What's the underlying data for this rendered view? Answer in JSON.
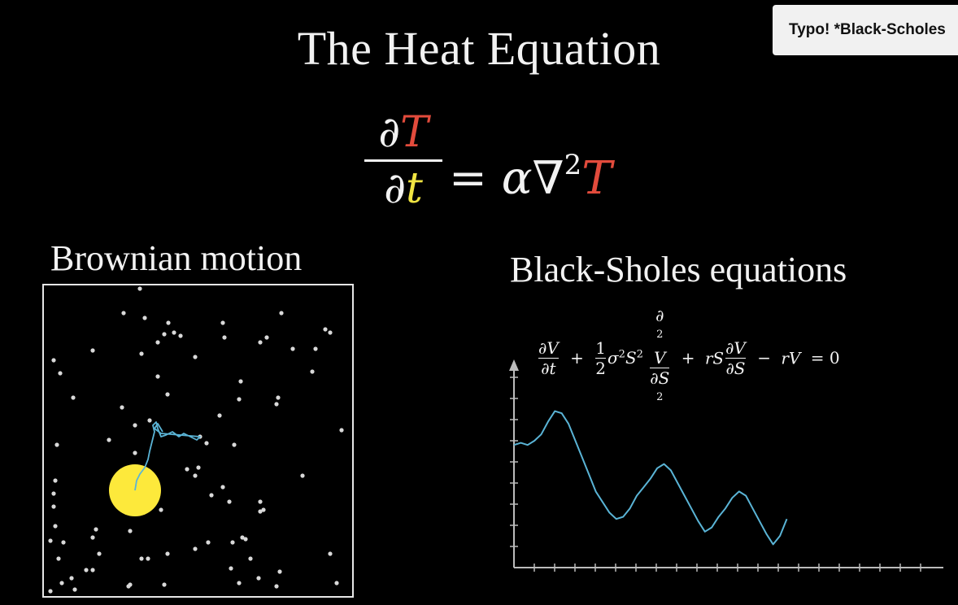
{
  "title": "The Heat Equation",
  "heat_equation": {
    "num_partial": "∂",
    "num_var": "T",
    "den_partial": "∂",
    "den_var": "t",
    "rhs_equals": "=",
    "rhs_alpha": "α∇",
    "rhs_exp": "2",
    "rhs_var": "T"
  },
  "brownian": {
    "label": "Brownian motion",
    "particle_color": "#fde93b",
    "path_color": "#5ab4d6"
  },
  "black_scholes": {
    "label": "Black-Sholes equations",
    "eq": {
      "f1_num": "∂V",
      "f1_den": "∂t",
      "plus1": "+",
      "f2_num": "1",
      "f2_den": "2",
      "sigma_s": "σ",
      "sup2a": "2",
      "s_term": "S",
      "sup2b": "2",
      "f3_num": "∂",
      "f3_sup": "2",
      "f3_numv": "V",
      "f3_den": "∂S",
      "f3_densup": "2",
      "plus2": "+",
      "rS": "rS",
      "f4_num": "∂V",
      "f4_den": "∂S",
      "minus": "−",
      "rV": "rV",
      "eq_zero": "= 0"
    }
  },
  "chart_data": {
    "type": "line",
    "x": [
      0,
      1,
      2,
      3,
      4,
      5,
      6,
      7,
      8,
      9,
      10,
      11,
      12,
      13,
      14,
      15,
      16,
      17,
      18,
      19,
      20,
      21,
      22,
      23,
      24,
      25,
      26,
      27,
      28,
      29,
      30,
      31,
      32,
      33,
      34,
      35,
      36,
      37,
      38,
      39,
      40
    ],
    "values": [
      5.8,
      5.9,
      5.8,
      6.0,
      6.3,
      6.9,
      7.4,
      7.3,
      6.8,
      6.0,
      5.2,
      4.4,
      3.6,
      3.1,
      2.6,
      2.3,
      2.4,
      2.8,
      3.4,
      3.8,
      4.2,
      4.7,
      4.9,
      4.6,
      4.0,
      3.4,
      2.8,
      2.2,
      1.7,
      1.9,
      2.4,
      2.8,
      3.3,
      3.6,
      3.4,
      2.8,
      2.2,
      1.6,
      1.1,
      1.5,
      2.3
    ],
    "ylim": [
      0,
      9
    ],
    "xlim": [
      0,
      62
    ],
    "line_color": "#5ab4d6",
    "axis_color": "#bbbbbb",
    "grid": false
  },
  "tooltip": {
    "text": "Typo! *Black-Scholes"
  }
}
